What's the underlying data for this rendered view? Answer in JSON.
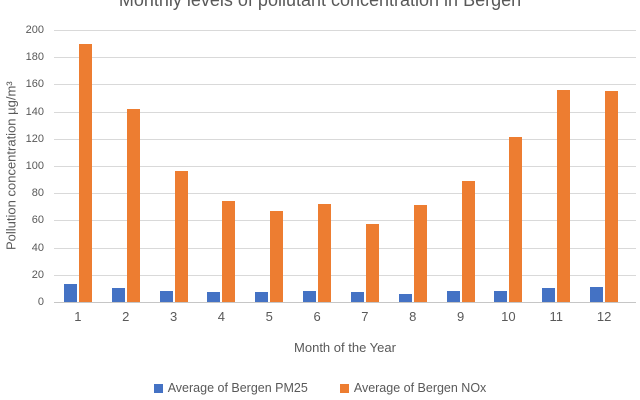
{
  "chart_data": {
    "type": "bar",
    "title": "Monthly levels of pollutant concentration in Bergen",
    "xlabel": "Month of the Year",
    "ylabel": "Pollution concentration µg/m³",
    "categories": [
      "1",
      "2",
      "3",
      "4",
      "5",
      "6",
      "7",
      "8",
      "9",
      "10",
      "11",
      "12"
    ],
    "series": [
      {
        "id": "pm25",
        "name": "Average of Bergen PM25",
        "color": "#4472C4",
        "values": [
          13,
          10,
          8,
          7,
          7,
          8,
          7,
          6,
          8,
          8,
          10,
          11
        ]
      },
      {
        "id": "nox",
        "name": "Average of Bergen NOx",
        "color": "#ED7D31",
        "values": [
          190,
          142,
          96,
          74,
          67,
          72,
          57,
          71,
          89,
          121,
          156,
          155
        ]
      }
    ],
    "ylim": [
      0,
      200
    ],
    "yticks": [
      0,
      20,
      40,
      60,
      80,
      100,
      120,
      140,
      160,
      180,
      200
    ],
    "grid": true,
    "legend_position": "bottom",
    "colors": {
      "text": "#595959",
      "gridline": "#D9D9D9",
      "axis": "#C6C6C6"
    }
  }
}
